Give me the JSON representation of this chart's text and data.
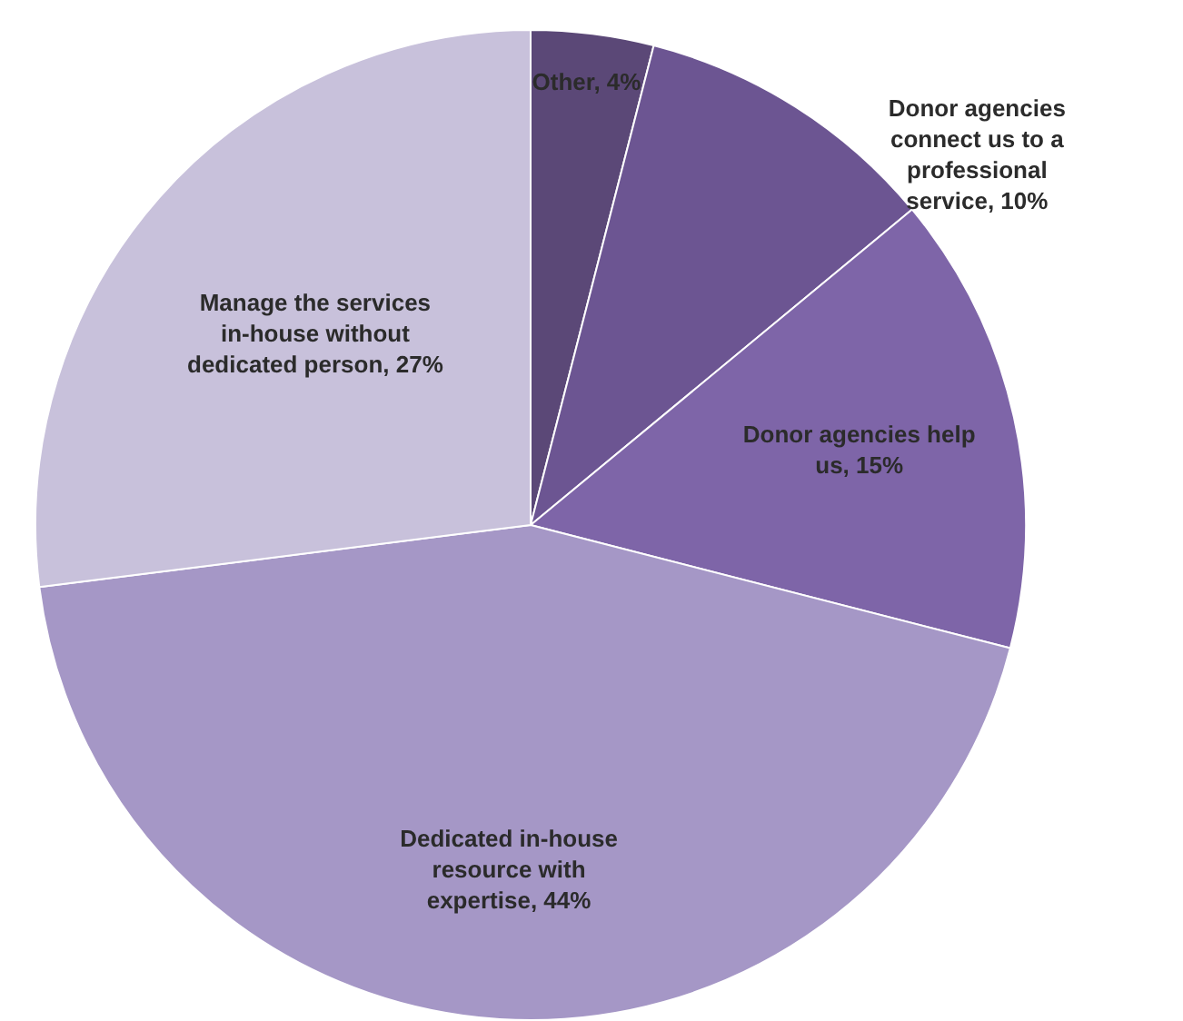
{
  "chart_data": {
    "type": "pie",
    "categories": [
      "Other",
      "Donor agencies connect us to a professional service",
      "Donor agencies help us",
      "Dedicated in-house resource with expertise",
      "Manage the services in-house without dedicated person"
    ],
    "values": [
      4,
      10,
      15,
      44,
      27
    ],
    "value_labels": [
      "4%",
      "10%",
      "15%",
      "44%",
      "27%"
    ],
    "colors": [
      "#5b4877",
      "#6c5592",
      "#7e65a8",
      "#a597c6",
      "#c8c1db"
    ],
    "legend": false
  }
}
